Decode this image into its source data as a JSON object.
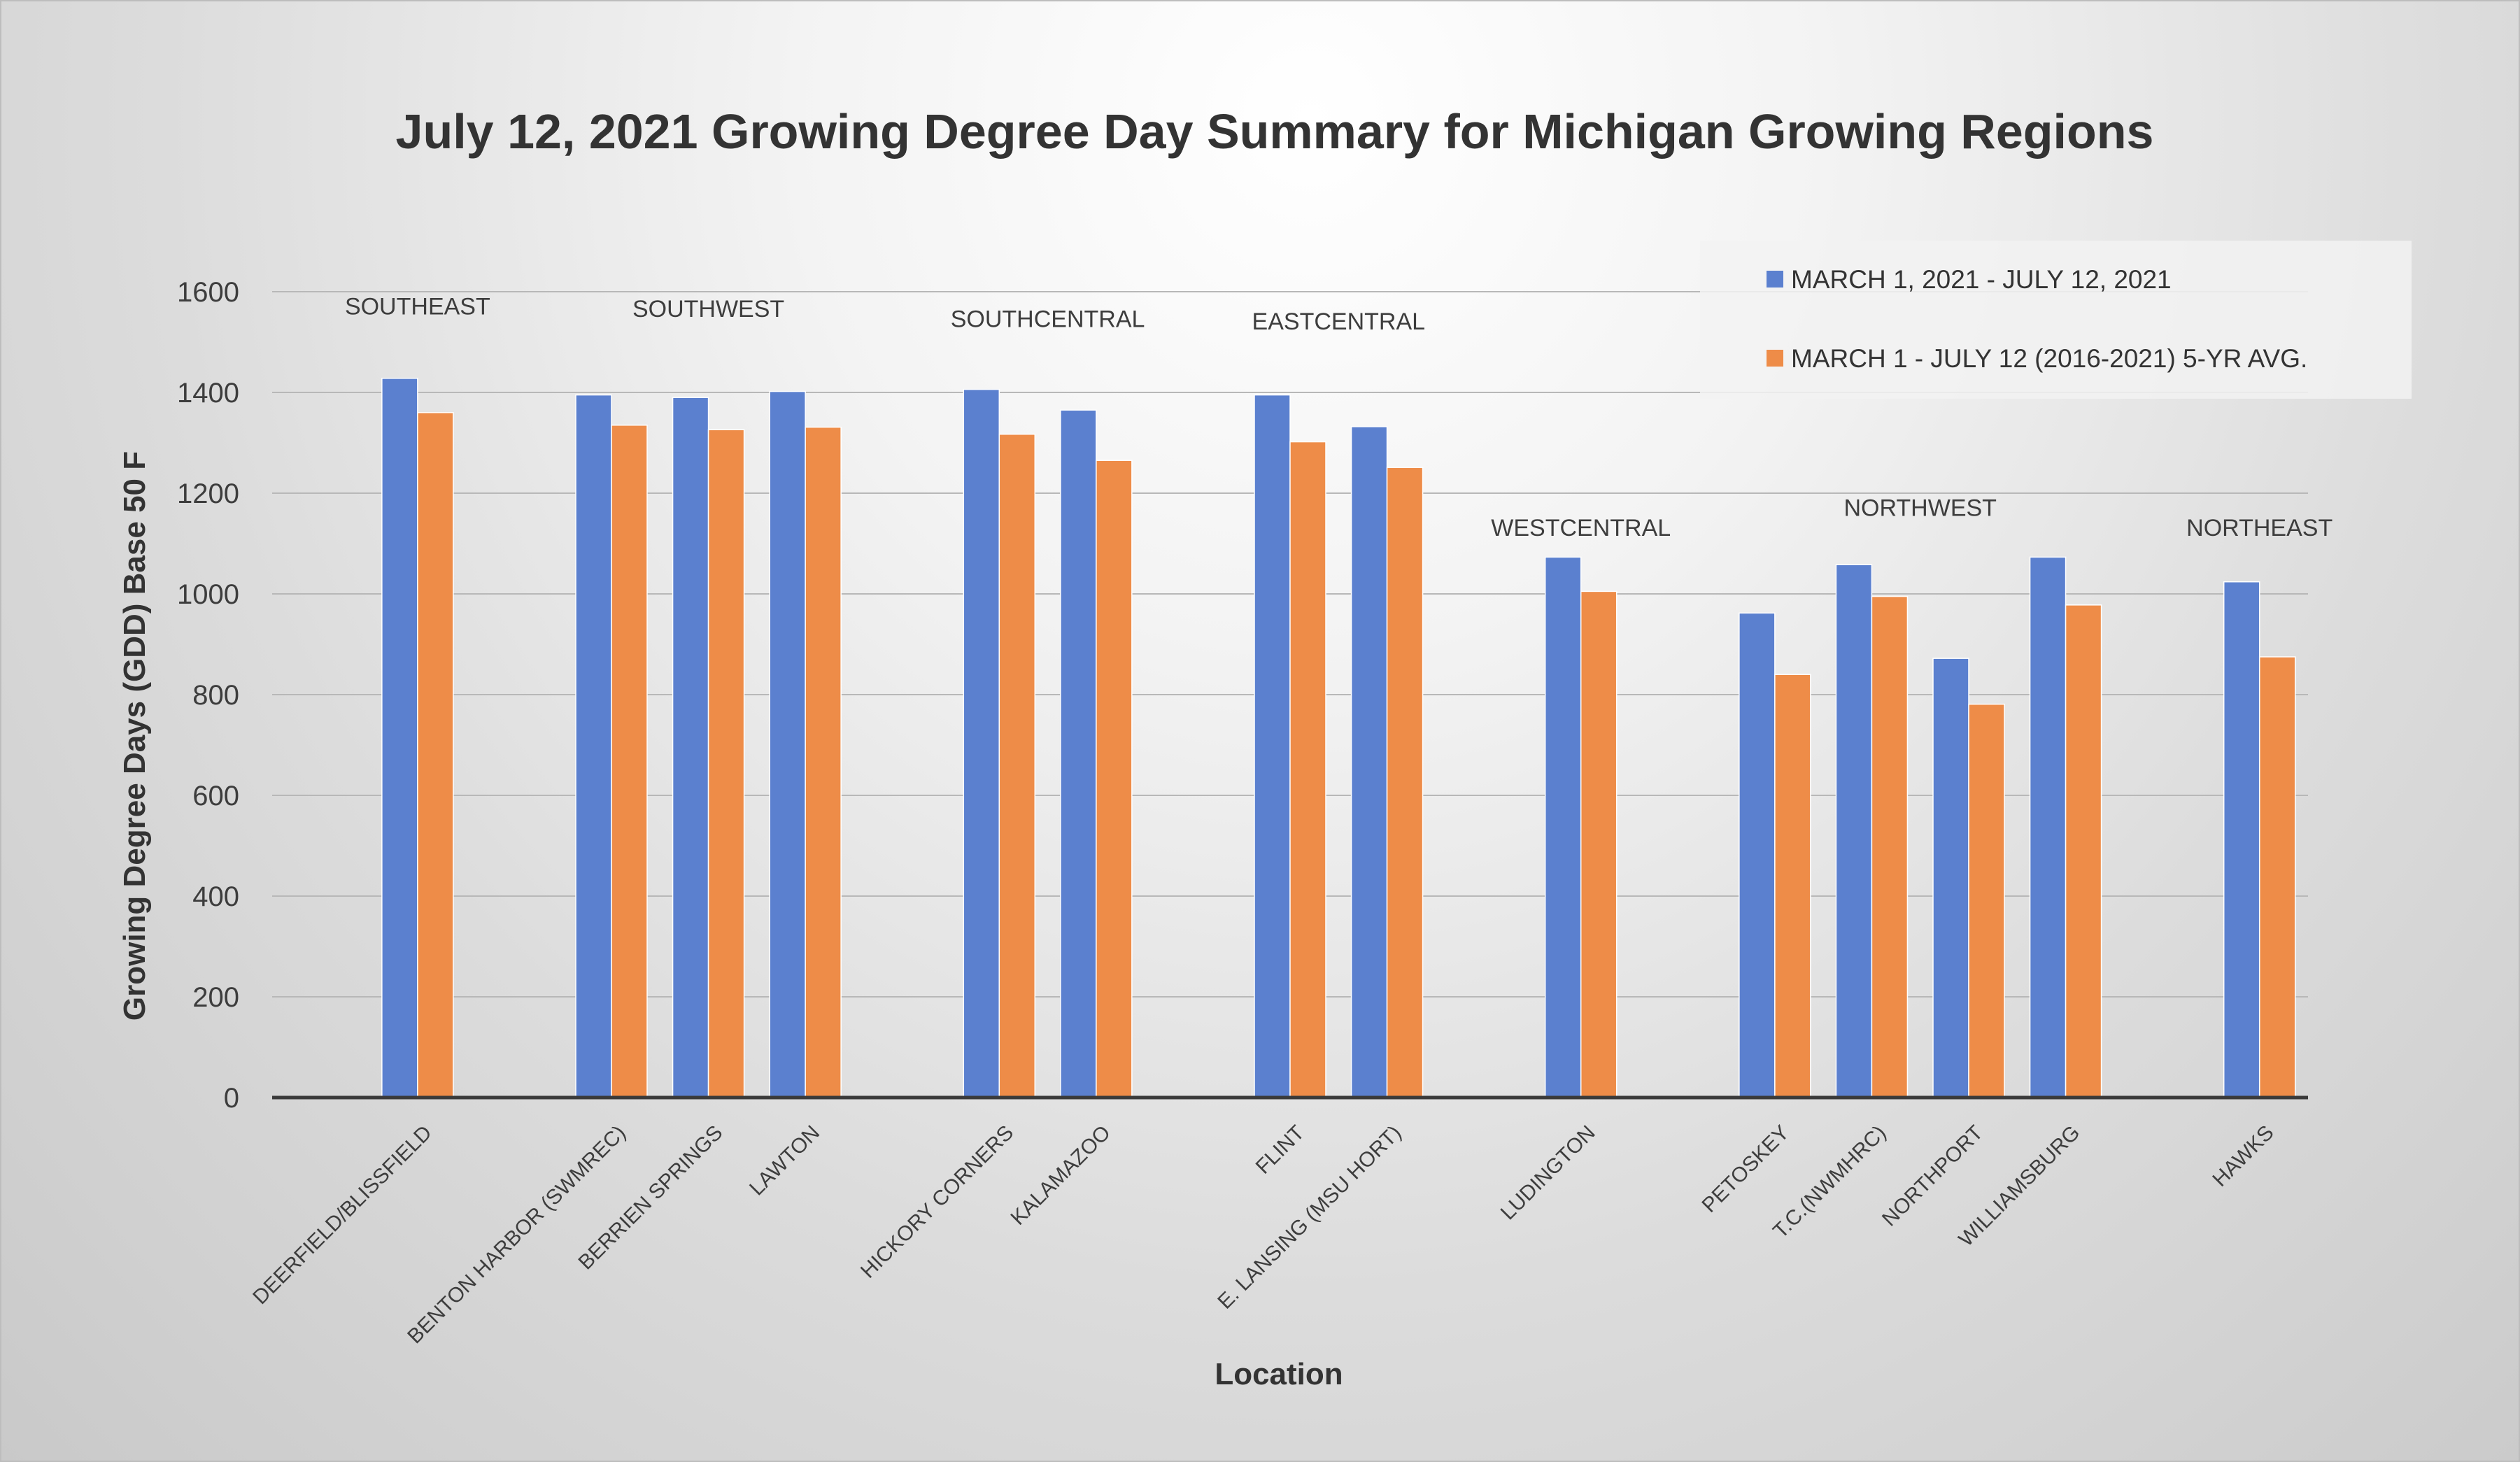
{
  "chart_data": {
    "type": "bar",
    "title": "July 12, 2021 Growing Degree Day Summary for Michigan Growing Regions",
    "xlabel": "Location",
    "ylabel": "Growing Degree Days (GDD) Base 50 F",
    "ylim": [
      0,
      1600
    ],
    "yticks": [
      0,
      200,
      400,
      600,
      800,
      1000,
      1200,
      1400,
      1600
    ],
    "grid": true,
    "legend_position": "top-right",
    "categories": [
      "DEERFIELD/BLISSFIELD",
      "BENTON HARBOR (SWMREC)",
      "BERRIEN SPRINGS",
      "LAWTON",
      "HICKORY CORNERS",
      "KALAMAZOO",
      "FLINT",
      "E. LANSING (MSU HORT)",
      "LUDINGTON",
      "PETOSKEY",
      "T.C.(NWMHRC)",
      "NORTHPORT",
      "WILLIAMSBURG",
      "HAWKS"
    ],
    "slots": [
      1,
      3,
      4,
      5,
      7,
      8,
      10,
      11,
      13,
      15,
      16,
      17,
      18,
      20
    ],
    "slot_count": 21,
    "series": [
      {
        "name": "MARCH 1, 2021 - JULY 12, 2021",
        "color": "#5b80cf",
        "values": [
          1428,
          1395,
          1390,
          1402,
          1406,
          1365,
          1395,
          1332,
          1073,
          962,
          1058,
          872,
          1073,
          1024
        ]
      },
      {
        "name": "MARCH 1 - JULY 12 (2016-2021) 5-YR AVG.",
        "color": "#ee8c48",
        "values": [
          1360,
          1335,
          1326,
          1331,
          1317,
          1265,
          1302,
          1251,
          1005,
          840,
          995,
          781,
          978,
          875
        ]
      }
    ],
    "regions": [
      {
        "name": "SOUTHEAST",
        "slot_center": 1,
        "value_level": 1555
      },
      {
        "name": "SOUTHWEST",
        "slot_center": 4,
        "value_level": 1550
      },
      {
        "name": "SOUTHCENTRAL",
        "slot_center": 7.5,
        "value_level": 1530
      },
      {
        "name": "EASTCENTRAL",
        "slot_center": 10.5,
        "value_level": 1525
      },
      {
        "name": "WESTCENTRAL",
        "slot_center": 13,
        "value_level": 1115
      },
      {
        "name": "NORTHWEST",
        "slot_center": 16.5,
        "value_level": 1155
      },
      {
        "name": "NORTHEAST",
        "slot_center": 20,
        "value_level": 1115
      }
    ]
  }
}
